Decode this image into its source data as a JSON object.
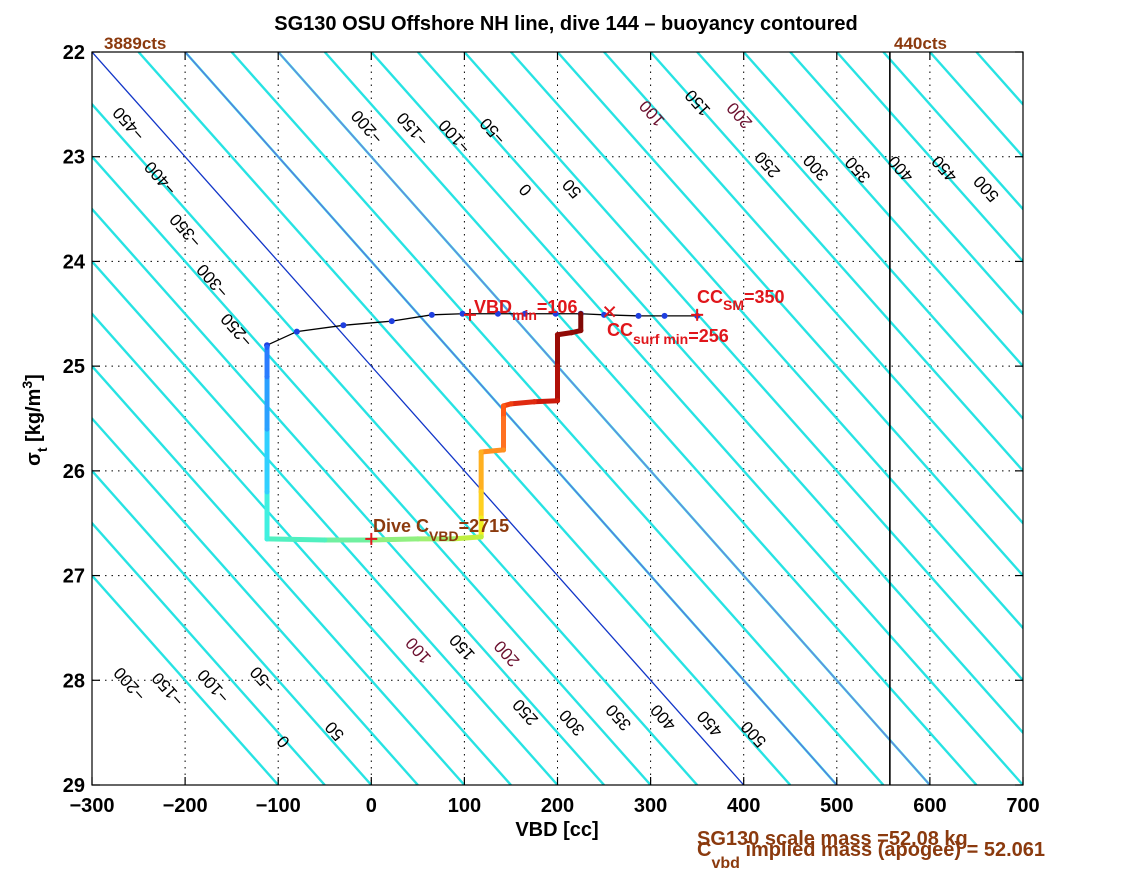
{
  "chart_data": {
    "type": "scatter",
    "title": "SG130 OSU Offshore NH line, dive 144 – buoyancy contoured",
    "xlabel": "VBD [cc]",
    "ylabel_main": "σ",
    "ylabel_sub": "t",
    "ylabel_unit": " [kg/m",
    "ylabel_sup": "3",
    "ylabel_close": "]",
    "xlim": [
      -300,
      700
    ],
    "ylim": [
      22,
      29
    ],
    "y_reversed": true,
    "grid": true,
    "x_ticks": [
      -300,
      -200,
      -100,
      0,
      100,
      200,
      300,
      400,
      500,
      600,
      700
    ],
    "x_tick_labels": [
      "−300",
      "−200",
      "−100",
      "0",
      "100",
      "200",
      "300",
      "400",
      "500",
      "600",
      "700"
    ],
    "y_ticks": [
      22,
      23,
      24,
      25,
      26,
      27,
      28,
      29
    ],
    "y_tick_labels": [
      "22",
      "23",
      "24",
      "25",
      "26",
      "27",
      "28",
      "29"
    ],
    "left_limit_label": "3889cts",
    "right_limit_label": "440cts",
    "right_limit_vbd": 557,
    "contour_slope_cc_per_sigma": 100,
    "cyan_contour_levels": [
      -500,
      -450,
      -400,
      -350,
      -300,
      -250,
      -200,
      -150,
      -100,
      -50,
      50,
      100,
      150,
      200,
      250,
      300,
      350,
      400,
      450,
      500,
      550,
      600,
      650,
      700,
      750,
      800,
      850,
      900,
      950,
      1000
    ],
    "contour_labels": [
      {
        "text": "−450",
        "x": -256,
        "y": 22.65,
        "color": "#000000"
      },
      {
        "text": "−400",
        "x": -222,
        "y": 23.17,
        "color": "#000000"
      },
      {
        "text": "−350",
        "x": -195,
        "y": 23.67,
        "color": "#000000"
      },
      {
        "text": "−300",
        "x": -166,
        "y": 24.15,
        "color": "#000000"
      },
      {
        "text": "−250",
        "x": -140,
        "y": 24.62,
        "color": "#000000"
      },
      {
        "text": "−200",
        "x": 0,
        "y": 22.68,
        "color": "#000000"
      },
      {
        "text": "−150",
        "x": 49,
        "y": 22.7,
        "color": "#000000"
      },
      {
        "text": "−100",
        "x": 94,
        "y": 22.77,
        "color": "#000000"
      },
      {
        "text": "−50",
        "x": 135,
        "y": 22.72,
        "color": "#000000"
      },
      {
        "text": "0",
        "x": 170,
        "y": 23.28,
        "color": "#000000"
      },
      {
        "text": "50",
        "x": 220,
        "y": 23.27,
        "color": "#000000"
      },
      {
        "text": "100",
        "x": 306,
        "y": 22.55,
        "color": "#6b0f2e"
      },
      {
        "text": "150",
        "x": 355,
        "y": 22.45,
        "color": "#000000"
      },
      {
        "text": "200",
        "x": 400,
        "y": 22.57,
        "color": "#6b0f2e"
      },
      {
        "text": "250",
        "x": 430,
        "y": 23.04,
        "color": "#000000"
      },
      {
        "text": "300",
        "x": 482,
        "y": 23.07,
        "color": "#000000"
      },
      {
        "text": "350",
        "x": 527,
        "y": 23.09,
        "color": "#000000"
      },
      {
        "text": "400",
        "x": 573,
        "y": 23.08,
        "color": "#000000"
      },
      {
        "text": "450",
        "x": 620,
        "y": 23.08,
        "color": "#000000"
      },
      {
        "text": "500",
        "x": 665,
        "y": 23.27,
        "color": "#000000"
      },
      {
        "text": "−200",
        "x": -255,
        "y": 28.0,
        "color": "#000000"
      },
      {
        "text": "−150",
        "x": -214,
        "y": 28.05,
        "color": "#000000"
      },
      {
        "text": "−100",
        "x": -165,
        "y": 28.02,
        "color": "#000000"
      },
      {
        "text": "−50",
        "x": -112,
        "y": 27.96,
        "color": "#000000"
      },
      {
        "text": "0",
        "x": -90,
        "y": 28.55,
        "color": "#000000"
      },
      {
        "text": "50",
        "x": -35,
        "y": 28.45,
        "color": "#000000"
      },
      {
        "text": "100",
        "x": 55,
        "y": 27.68,
        "color": "#6b0f2e"
      },
      {
        "text": "150",
        "x": 102,
        "y": 27.65,
        "color": "#000000"
      },
      {
        "text": "200",
        "x": 150,
        "y": 27.71,
        "color": "#6b0f2e"
      },
      {
        "text": "250",
        "x": 170,
        "y": 28.27,
        "color": "#000000"
      },
      {
        "text": "300",
        "x": 220,
        "y": 28.37,
        "color": "#000000"
      },
      {
        "text": "350",
        "x": 270,
        "y": 28.32,
        "color": "#000000"
      },
      {
        "text": "400",
        "x": 318,
        "y": 28.32,
        "color": "#000000"
      },
      {
        "text": "450",
        "x": 368,
        "y": 28.38,
        "color": "#000000"
      },
      {
        "text": "500",
        "x": 415,
        "y": 28.48,
        "color": "#000000"
      }
    ],
    "blue_lines": [
      {
        "level": 0,
        "color": "#1236c8"
      },
      {
        "level": 100,
        "color": "#5f72e0"
      },
      {
        "level": 200,
        "color": "#6f80e0"
      }
    ],
    "apogee_path": [
      {
        "x": 350,
        "y": 24.52
      },
      {
        "x": 315,
        "y": 24.52
      },
      {
        "x": 287,
        "y": 24.52
      },
      {
        "x": 250,
        "y": 24.51
      },
      {
        "x": 225,
        "y": 24.5
      },
      {
        "x": 198,
        "y": 24.5
      },
      {
        "x": 165,
        "y": 24.5
      },
      {
        "x": 136,
        "y": 24.5
      },
      {
        "x": 98,
        "y": 24.5
      },
      {
        "x": 65,
        "y": 24.51
      },
      {
        "x": 22,
        "y": 24.57
      },
      {
        "x": -30,
        "y": 24.61
      },
      {
        "x": -80,
        "y": 24.67
      },
      {
        "x": -112,
        "y": 24.8
      }
    ],
    "dive_path": [
      {
        "x": -112,
        "y": 24.82,
        "c": "#2060ff"
      },
      {
        "x": -112,
        "y": 25.1,
        "c": "#2a7cff"
      },
      {
        "x": -112,
        "y": 25.6,
        "c": "#2aa0ff"
      },
      {
        "x": -112,
        "y": 26.2,
        "c": "#30d0ff"
      },
      {
        "x": -112,
        "y": 26.65,
        "c": "#40f0e0"
      },
      {
        "x": -50,
        "y": 26.66,
        "c": "#50f0c0"
      },
      {
        "x": 0,
        "y": 26.66,
        "c": "#70f0a0"
      },
      {
        "x": 50,
        "y": 26.65,
        "c": "#90f080"
      },
      {
        "x": 88,
        "y": 26.65,
        "c": "#a0f070"
      },
      {
        "x": 118,
        "y": 26.63,
        "c": "#c0f040"
      },
      {
        "x": 118,
        "y": 26.45,
        "c": "#f0f020"
      },
      {
        "x": 118,
        "y": 26.2,
        "c": "#ffd020"
      },
      {
        "x": 118,
        "y": 25.82,
        "c": "#ffb020"
      },
      {
        "x": 142,
        "y": 25.8,
        "c": "#ff9020"
      },
      {
        "x": 142,
        "y": 25.5,
        "c": "#ff7020"
      },
      {
        "x": 142,
        "y": 25.38,
        "c": "#ff5a14"
      },
      {
        "x": 150,
        "y": 25.36,
        "c": "#f04010"
      },
      {
        "x": 175,
        "y": 25.34,
        "c": "#e02a10"
      },
      {
        "x": 200,
        "y": 25.33,
        "c": "#cc1a0a"
      },
      {
        "x": 200,
        "y": 25.0,
        "c": "#b01008"
      },
      {
        "x": 200,
        "y": 24.7,
        "c": "#9a0c06"
      },
      {
        "x": 215,
        "y": 24.68,
        "c": "#900a06"
      },
      {
        "x": 225,
        "y": 24.66,
        "c": "#8a0a06"
      },
      {
        "x": 225,
        "y": 24.5,
        "c": "#800805"
      }
    ],
    "annotations": {
      "vbd_min_main": "VBD",
      "vbd_min_sub": "min",
      "vbd_min_val": "=106",
      "cc_sm_main": "CC",
      "cc_sm_sub": "SM",
      "cc_sm_val": "=350",
      "cc_surf_main": "CC",
      "cc_surf_sub": "surf min",
      "cc_surf_val": "=256",
      "dive_c_main": "Dive C",
      "dive_c_sub": "VBD",
      "dive_c_val": "=2715"
    },
    "markers": [
      {
        "type": "plus",
        "x": 106,
        "y": 24.51
      },
      {
        "type": "plus",
        "x": 350,
        "y": 24.51
      },
      {
        "type": "cross",
        "x": 256,
        "y": 24.48
      },
      {
        "type": "plus",
        "x": 0,
        "y": 26.65
      }
    ],
    "footer_line1": "SG130 scale mass =52.08 kg",
    "footer_line2_main": "C",
    "footer_line2_sub": "vbd",
    "footer_line2_rest": " implied mass (apogee) = 52.061"
  }
}
